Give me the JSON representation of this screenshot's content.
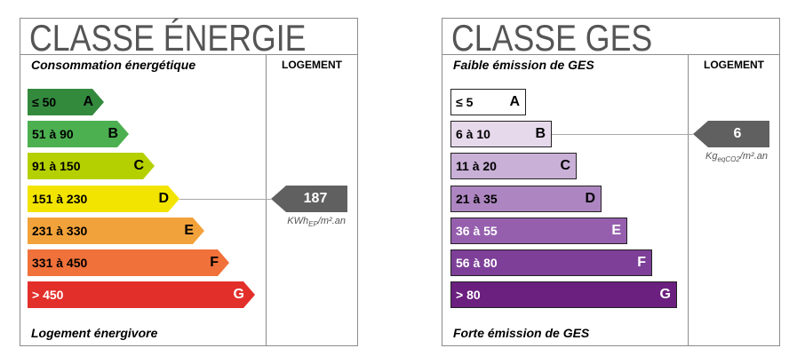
{
  "energy": {
    "title": "CLASSE ÉNERGIE",
    "scale_header": "Consommation énergétique",
    "column_header": "LOGEMENT",
    "footer": "Logement énergivore",
    "classes": [
      {
        "range": "≤ 50",
        "letter": "A",
        "color": "#338a3d",
        "text_color": "#000000"
      },
      {
        "range": "51 à 90",
        "letter": "B",
        "color": "#4caf50",
        "text_color": "#000000"
      },
      {
        "range": "91 à 150",
        "letter": "C",
        "color": "#b5d000",
        "text_color": "#000000"
      },
      {
        "range": "151 à 230",
        "letter": "D",
        "color": "#f3e400",
        "text_color": "#000000"
      },
      {
        "range": "231 à 330",
        "letter": "E",
        "color": "#f2a23a",
        "text_color": "#000000"
      },
      {
        "range": "331 à 450",
        "letter": "F",
        "color": "#f0713a",
        "text_color": "#000000"
      },
      {
        "range": "> 450",
        "letter": "G",
        "color": "#e32f2a",
        "text_color": "#ffffff"
      }
    ],
    "value": "187",
    "unit": {
      "main": "KWh",
      "sub": "EP",
      "rest": "/m².an"
    },
    "pointer_color": "#606060"
  },
  "ges": {
    "title": "CLASSE GES",
    "scale_header": "Faible émission de GES",
    "column_header": "LOGEMENT",
    "footer": "Forte émission de GES",
    "classes": [
      {
        "range": "≤ 5",
        "letter": "A",
        "color": "#ffffff",
        "text_color": "#000000"
      },
      {
        "range": "6 à 10",
        "letter": "B",
        "color": "#e7d9ec",
        "text_color": "#000000"
      },
      {
        "range": "11 à 20",
        "letter": "C",
        "color": "#c9b0d6",
        "text_color": "#000000"
      },
      {
        "range": "21 à 35",
        "letter": "D",
        "color": "#ad86c1",
        "text_color": "#000000"
      },
      {
        "range": "36 à 55",
        "letter": "E",
        "color": "#955fae",
        "text_color": "#ffffff"
      },
      {
        "range": "56 à 80",
        "letter": "F",
        "color": "#7d3f98",
        "text_color": "#ffffff"
      },
      {
        "range": "> 80",
        "letter": "G",
        "color": "#6b1f7f",
        "text_color": "#ffffff"
      }
    ],
    "value": "6",
    "unit": {
      "main": "Kg",
      "sub": "eqCO2",
      "rest": "/m².an"
    },
    "pointer_color": "#606060"
  }
}
